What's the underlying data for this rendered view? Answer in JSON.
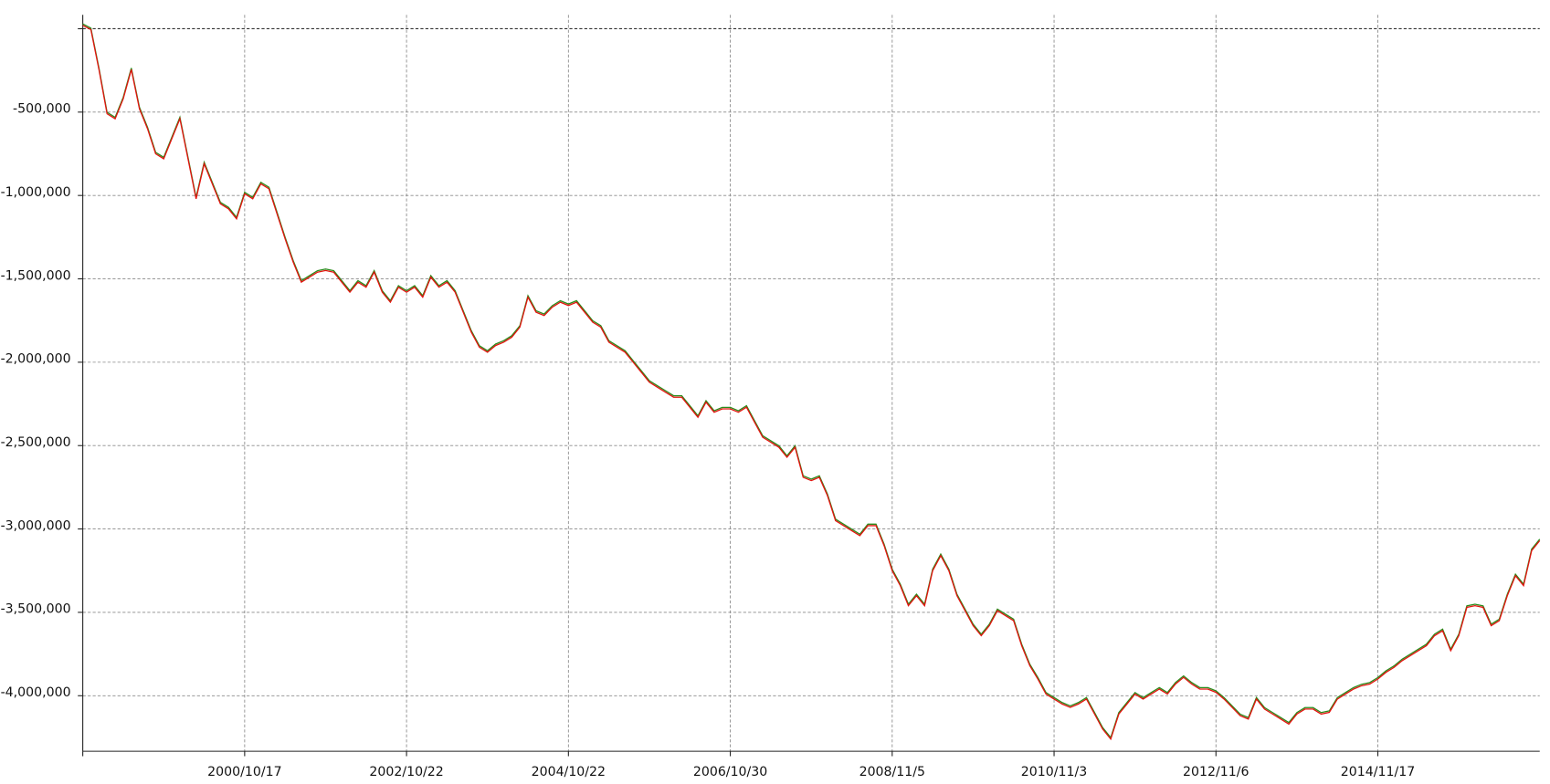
{
  "chart_data": {
    "type": "line",
    "categories": [
      null,
      null,
      null,
      null,
      null,
      null,
      null,
      null,
      null,
      null,
      null,
      null,
      null,
      null,
      null,
      null,
      null,
      null,
      null,
      null,
      "2000/10/17",
      null,
      null,
      null,
      null,
      null,
      null,
      null,
      null,
      null,
      null,
      null,
      null,
      null,
      null,
      null,
      null,
      null,
      null,
      null,
      "2002/10/22",
      null,
      null,
      null,
      null,
      null,
      null,
      null,
      null,
      null,
      null,
      null,
      null,
      null,
      null,
      null,
      null,
      null,
      null,
      null,
      "2004/10/22",
      null,
      null,
      null,
      null,
      null,
      null,
      null,
      null,
      null,
      null,
      null,
      null,
      null,
      null,
      null,
      null,
      null,
      null,
      null,
      "2006/10/30",
      null,
      null,
      null,
      null,
      null,
      null,
      null,
      null,
      null,
      null,
      null,
      null,
      null,
      null,
      null,
      null,
      null,
      null,
      null,
      "2008/11/5",
      null,
      null,
      null,
      null,
      null,
      null,
      null,
      null,
      null,
      null,
      null,
      null,
      null,
      null,
      null,
      null,
      null,
      null,
      null,
      "2010/11/3",
      null,
      null,
      null,
      null,
      null,
      null,
      null,
      null,
      null,
      null,
      null,
      null,
      null,
      null,
      null,
      null,
      null,
      null,
      null,
      "2012/11/6",
      null,
      null,
      null,
      null,
      null,
      null,
      null,
      null,
      null,
      null,
      null,
      null,
      null,
      null,
      null,
      null,
      null,
      null,
      null,
      "2014/11/17",
      null,
      null,
      null,
      null,
      null,
      null,
      null,
      null,
      null,
      null,
      null,
      null,
      null,
      null,
      null,
      null,
      null,
      null,
      null,
      null
    ],
    "series": [
      {
        "color": "#e3140f",
        "shadow": "#2a8a1a",
        "values": [
          20000,
          -5000,
          -245000,
          -510000,
          -540000,
          -420000,
          -245000,
          -480000,
          -600000,
          -750000,
          -780000,
          -660000,
          -540000,
          -780000,
          -1020000,
          -810000,
          -930000,
          -1050000,
          -1080000,
          -1140000,
          -990000,
          -1020000,
          -930000,
          -960000,
          -1110000,
          -1260000,
          -1400000,
          -1520000,
          -1490000,
          -1460000,
          -1450000,
          -1460000,
          -1520000,
          -1580000,
          -1520000,
          -1550000,
          -1460000,
          -1580000,
          -1640000,
          -1550000,
          -1580000,
          -1550000,
          -1610000,
          -1490000,
          -1550000,
          -1520000,
          -1580000,
          -1700000,
          -1820000,
          -1910000,
          -1940000,
          -1900000,
          -1880000,
          -1850000,
          -1790000,
          -1610000,
          -1700000,
          -1720000,
          -1670000,
          -1640000,
          -1660000,
          -1640000,
          -1700000,
          -1760000,
          -1790000,
          -1880000,
          -1910000,
          -1940000,
          -2000000,
          -2060000,
          -2120000,
          -2150000,
          -2180000,
          -2210000,
          -2210000,
          -2270000,
          -2330000,
          -2240000,
          -2300000,
          -2280000,
          -2280000,
          -2300000,
          -2270000,
          -2360000,
          -2450000,
          -2480000,
          -2510000,
          -2570000,
          -2510000,
          -2690000,
          -2710000,
          -2690000,
          -2800000,
          -2950000,
          -2980000,
          -3010000,
          -3040000,
          -2980000,
          -2980000,
          -3100000,
          -3250000,
          -3340000,
          -3460000,
          -3400000,
          -3460000,
          -3250000,
          -3160000,
          -3250000,
          -3400000,
          -3490000,
          -3580000,
          -3640000,
          -3580000,
          -3490000,
          -3520000,
          -3550000,
          -3700000,
          -3820000,
          -3900000,
          -3990000,
          -4020000,
          -4050000,
          -4070000,
          -4050000,
          -4020000,
          -4110000,
          -4200000,
          -4260000,
          -4110000,
          -4050000,
          -3990000,
          -4020000,
          -3990000,
          -3960000,
          -3990000,
          -3930000,
          -3890000,
          -3930000,
          -3960000,
          -3960000,
          -3980000,
          -4020000,
          -4070000,
          -4120000,
          -4140000,
          -4020000,
          -4080000,
          -4110000,
          -4140000,
          -4170000,
          -4110000,
          -4080000,
          -4080000,
          -4110000,
          -4100000,
          -4020000,
          -3990000,
          -3960000,
          -3940000,
          -3930000,
          -3900000,
          -3860000,
          -3830000,
          -3790000,
          -3760000,
          -3730000,
          -3700000,
          -3640000,
          -3610000,
          -3730000,
          -3640000,
          -3470000,
          -3460000,
          -3470000,
          -3580000,
          -3550000,
          -3400000,
          -3280000,
          -3340000,
          -3130000,
          -3070000
        ]
      }
    ],
    "ylim": [
      -4333000,
      83000
    ],
    "yticks": [
      {
        "value": -500000,
        "label": "-500,000"
      },
      {
        "value": -1000000,
        "label": "-1,000,000"
      },
      {
        "value": -1500000,
        "label": "-1,500,000"
      },
      {
        "value": -2000000,
        "label": "-2,000,000"
      },
      {
        "value": -2500000,
        "label": "-2,500,000"
      },
      {
        "value": -3000000,
        "label": "-3,000,000"
      },
      {
        "value": -3500000,
        "label": "-3,500,000"
      },
      {
        "value": -4000000,
        "label": "-4,000,000"
      }
    ],
    "grid": true
  }
}
